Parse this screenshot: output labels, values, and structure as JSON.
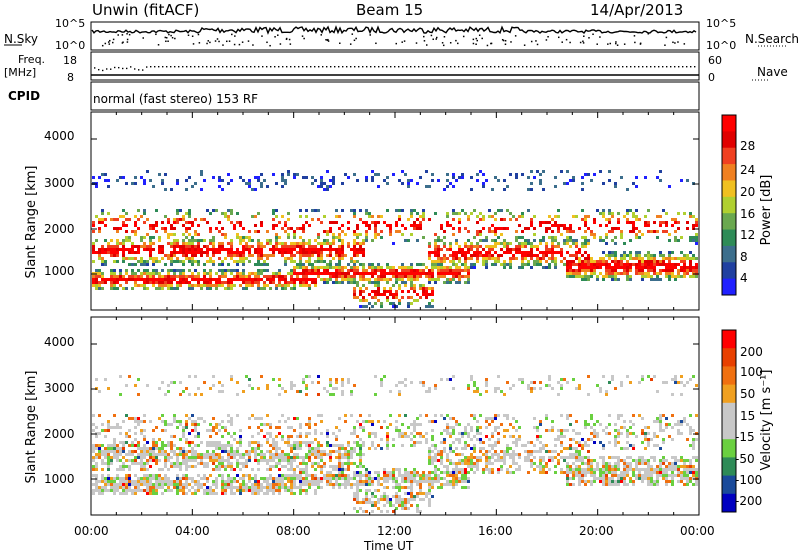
{
  "header": {
    "station": "Unwin (fitACF)",
    "beam": "Beam 15",
    "date": "14/Apr/2013"
  },
  "noise_panel": {
    "left_label": "N.Sky",
    "left_ticks": [
      "10^5",
      "10^0"
    ],
    "right_label": "N.Search",
    "right_ticks": [
      "10^5",
      "10^0"
    ]
  },
  "freq_panel": {
    "left_label_line1": "Freq.",
    "left_label_line2": "[MHz]",
    "left_ticks": [
      "18",
      "8"
    ],
    "right_label": "Nave",
    "right_ticks": [
      "60",
      "0"
    ],
    "cpid_label": "CPID",
    "cpid_text": "normal (fast stereo) 153 RF"
  },
  "colors": {
    "power_scale": [
      "#2020ff",
      "#2040a0",
      "#3c6e8c",
      "#2e8b57",
      "#6aa84f",
      "#b0d030",
      "#f0c020",
      "#f08020",
      "#f04020",
      "#e00000",
      "#ff0000"
    ],
    "velocity_scale": [
      "#0000c0",
      "#1a4a9a",
      "#2e8b57",
      "#6ad040",
      "#c8c8c8",
      "#c8c8c8",
      "#f0a020",
      "#f07010",
      "#e84000",
      "#ff0000"
    ]
  },
  "chart_data": [
    {
      "type": "heatmap",
      "title": "Power",
      "xlabel": "Time UT",
      "ylabel": "Slant Range [km]",
      "x_ticks": [
        "00:00",
        "04:00",
        "08:00",
        "12:00",
        "16:00",
        "20:00",
        "00:00"
      ],
      "y_ticks": [
        "1000",
        "2000",
        "3000",
        "4000"
      ],
      "ylim": [
        200,
        4600
      ],
      "colorbar_label": "Power [dB]",
      "colorbar_ticks": [
        "4",
        "8",
        "12",
        "16",
        "20",
        "24",
        "28"
      ]
    },
    {
      "type": "heatmap",
      "title": "Velocity",
      "xlabel": "Time UT",
      "ylabel": "Slant Range [km]",
      "x_ticks": [
        "00:00",
        "04:00",
        "08:00",
        "12:00",
        "16:00",
        "20:00",
        "00:00"
      ],
      "y_ticks": [
        "1000",
        "2000",
        "3000",
        "4000"
      ],
      "ylim": [
        200,
        4600
      ],
      "colorbar_label": "Velocity [m s⁻¹]",
      "colorbar_ticks": [
        "200",
        "100",
        "50",
        "15",
        "-15",
        "-50",
        "-100",
        "-200"
      ]
    }
  ],
  "x_axis_title": "Time UT"
}
